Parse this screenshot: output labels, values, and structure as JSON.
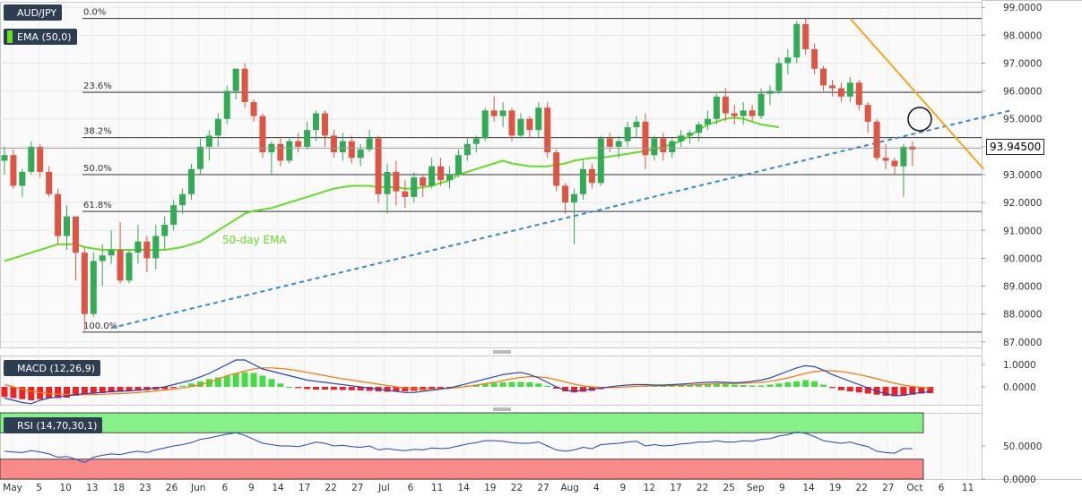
{
  "chart_data": {
    "type": "candlestick",
    "symbol": "AUD/JPY",
    "y_ticks": [
      "99.0000",
      "98.0000",
      "97.0000",
      "96.0000",
      "95.0000",
      "94.0000",
      "93.0000",
      "92.0000",
      "91.0000",
      "90.0000",
      "89.0000",
      "88.0000",
      "87.0000"
    ],
    "ylim": [
      86.8,
      99.2
    ],
    "current_price": "93.94500",
    "x_ticks": [
      "May",
      "5",
      "10",
      "13",
      "18",
      "23",
      "26",
      "Jun",
      "6",
      "9",
      "14",
      "17",
      "22",
      "27",
      "Jul",
      "6",
      "11",
      "14",
      "19",
      "22",
      "27",
      "Aug",
      "4",
      "9",
      "12",
      "17",
      "22",
      "25",
      "Sep",
      "9",
      "14",
      "19",
      "22",
      "27",
      "Oct",
      "6",
      "11"
    ],
    "ema": {
      "label": "EMA (50,0)",
      "annotation": "50-day EMA",
      "color": "#66dd22",
      "values": [
        89.9,
        90.0,
        90.1,
        90.2,
        90.3,
        90.4,
        90.5,
        90.5,
        90.5,
        90.4,
        90.35,
        90.3,
        90.3,
        90.3,
        90.3,
        90.3,
        90.3,
        90.3,
        90.3,
        90.35,
        90.4,
        90.5,
        90.6,
        90.8,
        91.0,
        91.2,
        91.4,
        91.6,
        91.7,
        91.75,
        91.8,
        91.9,
        92.0,
        92.1,
        92.2,
        92.3,
        92.4,
        92.5,
        92.55,
        92.6,
        92.6,
        92.6,
        92.55,
        92.55,
        92.55,
        92.5,
        92.5,
        92.55,
        92.6,
        92.7,
        92.8,
        93.0,
        93.1,
        93.2,
        93.3,
        93.4,
        93.5,
        93.4,
        93.35,
        93.3,
        93.3,
        93.3,
        93.35,
        93.4,
        93.5,
        93.55,
        93.6,
        93.6,
        93.65,
        93.7,
        93.75,
        93.8,
        93.85,
        93.9,
        94.0,
        94.1,
        94.2,
        94.4,
        94.6,
        94.8,
        94.9,
        95.0,
        95.05,
        95.0,
        94.9,
        94.8,
        94.75,
        94.7
      ]
    },
    "fibonacci": [
      {
        "label": "0.0%",
        "value": 98.6
      },
      {
        "label": "23.6%",
        "value": 95.95
      },
      {
        "label": "38.2%",
        "value": 94.33
      },
      {
        "label": "50.0%",
        "value": 93.0
      },
      {
        "label": "61.8%",
        "value": 91.68
      },
      {
        "label": "100.0%",
        "value": 87.35
      }
    ],
    "trendline_support": {
      "from": {
        "bar": 12,
        "value": 87.5
      },
      "to": {
        "bar": 113,
        "value": 95.3
      }
    },
    "trendline_resistance": {
      "from": {
        "bar": 95,
        "value": 98.6
      },
      "to": {
        "bar": 110,
        "value": 93.2
      }
    },
    "candles": [
      [
        93.5,
        94.0,
        93.0,
        93.7
      ],
      [
        93.7,
        93.9,
        92.5,
        92.6
      ],
      [
        92.6,
        93.2,
        92.2,
        93.1
      ],
      [
        93.1,
        94.2,
        93.0,
        94.0
      ],
      [
        94.0,
        94.1,
        92.9,
        93.1
      ],
      [
        93.1,
        93.3,
        92.2,
        92.3
      ],
      [
        92.3,
        92.5,
        90.5,
        90.8
      ],
      [
        90.8,
        91.9,
        90.3,
        91.5
      ],
      [
        91.5,
        91.5,
        89.2,
        90.2
      ],
      [
        90.2,
        90.4,
        87.4,
        88.0
      ],
      [
        88.0,
        90.2,
        87.9,
        89.9
      ],
      [
        89.9,
        90.5,
        89.0,
        90.1
      ],
      [
        90.1,
        91.0,
        89.8,
        90.3
      ],
      [
        90.3,
        91.3,
        89.1,
        89.2
      ],
      [
        89.2,
        90.3,
        89.1,
        90.2
      ],
      [
        90.2,
        91.2,
        89.8,
        90.6
      ],
      [
        90.6,
        90.8,
        89.5,
        90.0
      ],
      [
        90.0,
        91.2,
        89.6,
        90.8
      ],
      [
        90.8,
        91.5,
        90.3,
        91.2
      ],
      [
        91.2,
        92.1,
        91.0,
        91.9
      ],
      [
        91.9,
        92.5,
        91.6,
        92.3
      ],
      [
        92.3,
        93.4,
        92.1,
        93.2
      ],
      [
        93.2,
        94.3,
        93.0,
        94.0
      ],
      [
        94.0,
        94.6,
        93.5,
        94.4
      ],
      [
        94.4,
        95.2,
        94.0,
        95.0
      ],
      [
        95.0,
        96.2,
        94.8,
        96.0
      ],
      [
        96.0,
        96.8,
        95.7,
        96.8
      ],
      [
        96.8,
        97.0,
        95.4,
        95.6
      ],
      [
        95.6,
        95.7,
        94.9,
        95.1
      ],
      [
        95.1,
        95.2,
        93.6,
        93.8
      ],
      [
        93.8,
        94.2,
        93.0,
        94.1
      ],
      [
        94.1,
        94.3,
        93.3,
        93.5
      ],
      [
        93.5,
        94.3,
        93.4,
        94.2
      ],
      [
        94.2,
        94.5,
        93.8,
        94.0
      ],
      [
        94.0,
        94.9,
        93.9,
        94.6
      ],
      [
        94.6,
        95.3,
        94.2,
        95.2
      ],
      [
        95.2,
        95.3,
        94.0,
        94.4
      ],
      [
        94.4,
        94.6,
        93.6,
        93.8
      ],
      [
        93.8,
        94.5,
        93.5,
        94.2
      ],
      [
        94.2,
        94.4,
        93.4,
        93.6
      ],
      [
        93.6,
        94.1,
        93.3,
        93.9
      ],
      [
        93.9,
        94.6,
        93.8,
        94.3
      ],
      [
        94.3,
        94.4,
        92.0,
        92.3
      ],
      [
        92.3,
        93.4,
        91.6,
        93.1
      ],
      [
        93.1,
        93.5,
        91.9,
        92.4
      ],
      [
        92.4,
        92.8,
        91.8,
        92.2
      ],
      [
        92.2,
        93.1,
        92.0,
        92.9
      ],
      [
        92.9,
        93.0,
        92.2,
        92.6
      ],
      [
        92.6,
        93.6,
        92.5,
        93.3
      ],
      [
        93.3,
        93.6,
        92.6,
        92.8
      ],
      [
        92.8,
        93.3,
        92.5,
        93.0
      ],
      [
        93.0,
        93.9,
        92.9,
        93.7
      ],
      [
        93.7,
        94.3,
        93.5,
        94.1
      ],
      [
        94.1,
        94.4,
        93.8,
        94.3
      ],
      [
        94.3,
        95.4,
        94.2,
        95.3
      ],
      [
        95.3,
        95.8,
        94.9,
        95.1
      ],
      [
        95.1,
        95.6,
        94.7,
        95.3
      ],
      [
        95.3,
        95.4,
        94.2,
        94.4
      ],
      [
        94.4,
        95.2,
        94.3,
        95.0
      ],
      [
        95.0,
        95.1,
        94.3,
        94.6
      ],
      [
        94.6,
        95.6,
        94.3,
        95.4
      ],
      [
        95.4,
        95.6,
        93.6,
        93.8
      ],
      [
        93.8,
        93.9,
        92.4,
        92.6
      ],
      [
        92.6,
        92.7,
        91.6,
        92.0
      ],
      [
        92.0,
        92.5,
        90.5,
        92.3
      ],
      [
        92.3,
        93.5,
        92.1,
        93.2
      ],
      [
        93.2,
        93.4,
        92.5,
        92.7
      ],
      [
        92.7,
        94.4,
        92.6,
        94.3
      ],
      [
        94.3,
        94.5,
        93.8,
        94.0
      ],
      [
        94.0,
        94.4,
        93.6,
        94.2
      ],
      [
        94.2,
        94.9,
        94.0,
        94.7
      ],
      [
        94.7,
        95.1,
        94.3,
        94.9
      ],
      [
        94.9,
        95.2,
        93.2,
        93.7
      ],
      [
        93.7,
        94.4,
        93.5,
        94.3
      ],
      [
        94.3,
        94.5,
        93.5,
        93.8
      ],
      [
        93.8,
        94.3,
        93.6,
        94.2
      ],
      [
        94.2,
        94.6,
        94.0,
        94.4
      ],
      [
        94.4,
        94.6,
        94.1,
        94.5
      ],
      [
        94.5,
        94.9,
        94.2,
        94.8
      ],
      [
        94.8,
        95.3,
        94.6,
        95.0
      ],
      [
        95.0,
        95.9,
        94.8,
        95.8
      ],
      [
        95.8,
        96.1,
        94.9,
        95.2
      ],
      [
        95.2,
        95.5,
        94.8,
        95.1
      ],
      [
        95.1,
        95.6,
        94.8,
        95.3
      ],
      [
        95.3,
        95.5,
        94.9,
        95.1
      ],
      [
        95.1,
        96.1,
        95.0,
        95.9
      ],
      [
        95.9,
        96.2,
        95.5,
        96.0
      ],
      [
        96.0,
        97.2,
        95.9,
        97.0
      ],
      [
        97.0,
        97.5,
        96.6,
        97.2
      ],
      [
        97.2,
        98.5,
        97.0,
        98.4
      ],
      [
        98.4,
        98.6,
        97.3,
        97.5
      ],
      [
        97.5,
        97.7,
        96.6,
        96.8
      ],
      [
        96.8,
        96.9,
        96.0,
        96.2
      ],
      [
        96.2,
        96.4,
        95.8,
        96.1
      ],
      [
        96.1,
        96.3,
        95.6,
        95.8
      ],
      [
        95.8,
        96.5,
        95.6,
        96.3
      ],
      [
        96.3,
        96.4,
        95.3,
        95.5
      ],
      [
        95.5,
        95.6,
        94.5,
        94.9
      ],
      [
        94.9,
        95.0,
        93.5,
        93.6
      ],
      [
        93.6,
        94.1,
        93.2,
        93.5
      ],
      [
        93.5,
        93.6,
        93.0,
        93.3
      ],
      [
        93.3,
        94.1,
        92.2,
        94.0
      ],
      [
        94.0,
        94.2,
        93.3,
        93.9
      ]
    ],
    "macd": {
      "label": "MACD (12,26,9)",
      "y_ticks": [
        "1.0000",
        "0.0000"
      ],
      "ylim": [
        -0.8,
        1.4
      ],
      "hist": [
        -0.45,
        -0.5,
        -0.55,
        -0.6,
        -0.55,
        -0.5,
        -0.5,
        -0.48,
        -0.4,
        -0.35,
        -0.3,
        -0.28,
        -0.25,
        -0.22,
        -0.2,
        -0.18,
        -0.15,
        -0.12,
        -0.1,
        -0.05,
        0.05,
        0.15,
        0.25,
        0.35,
        0.42,
        0.5,
        0.6,
        0.65,
        0.62,
        0.5,
        0.35,
        0.15,
        0.0,
        -0.05,
        -0.1,
        -0.12,
        -0.12,
        -0.13,
        -0.14,
        -0.15,
        -0.16,
        -0.18,
        -0.2,
        -0.22,
        -0.22,
        -0.2,
        -0.18,
        -0.15,
        -0.12,
        -0.08,
        -0.04,
        0.02,
        0.06,
        0.1,
        0.15,
        0.18,
        0.2,
        0.22,
        0.22,
        0.2,
        0.15,
        0.05,
        -0.08,
        -0.2,
        -0.25,
        -0.22,
        -0.18,
        -0.1,
        -0.05,
        -0.02,
        0.02,
        0.04,
        0.05,
        0.05,
        0.04,
        0.05,
        0.06,
        0.07,
        0.08,
        0.1,
        0.12,
        0.12,
        0.1,
        0.08,
        0.06,
        0.06,
        0.1,
        0.15,
        0.2,
        0.25,
        0.3,
        0.25,
        0.1,
        -0.05,
        -0.15,
        -0.2,
        -0.25,
        -0.3,
        -0.35,
        -0.4,
        -0.42,
        -0.4,
        -0.35,
        -0.3,
        -0.28
      ],
      "macd": [
        -0.5,
        -0.6,
        -0.7,
        -0.75,
        -0.6,
        -0.5,
        -0.45,
        -0.4,
        -0.35,
        -0.3,
        -0.28,
        -0.25,
        -0.2,
        -0.2,
        -0.18,
        -0.15,
        -0.1,
        -0.05,
        0.0,
        0.1,
        0.2,
        0.3,
        0.45,
        0.6,
        0.8,
        1.0,
        1.2,
        1.2,
        1.0,
        0.8,
        0.7,
        0.6,
        0.5,
        0.4,
        0.3,
        0.25,
        0.2,
        0.15,
        0.1,
        0.05,
        0.0,
        -0.05,
        -0.1,
        -0.15,
        -0.2,
        -0.25,
        -0.25,
        -0.2,
        -0.15,
        -0.1,
        -0.05,
        0.05,
        0.15,
        0.25,
        0.35,
        0.45,
        0.55,
        0.6,
        0.65,
        0.55,
        0.4,
        0.2,
        0.0,
        -0.15,
        -0.2,
        -0.15,
        -0.1,
        -0.05,
        0.0,
        0.05,
        0.08,
        0.1,
        0.1,
        0.08,
        0.08,
        0.1,
        0.12,
        0.15,
        0.18,
        0.2,
        0.22,
        0.2,
        0.18,
        0.2,
        0.25,
        0.3,
        0.4,
        0.55,
        0.7,
        0.85,
        0.95,
        0.9,
        0.75,
        0.55,
        0.4,
        0.25,
        0.1,
        -0.05,
        -0.2,
        -0.3,
        -0.4,
        -0.38,
        -0.3,
        -0.25,
        -0.22
      ],
      "signal": [
        0.1,
        0.0,
        -0.1,
        -0.2,
        -0.25,
        -0.3,
        -0.32,
        -0.34,
        -0.35,
        -0.35,
        -0.34,
        -0.33,
        -0.31,
        -0.3,
        -0.28,
        -0.25,
        -0.22,
        -0.18,
        -0.14,
        -0.1,
        -0.05,
        0.02,
        0.1,
        0.2,
        0.35,
        0.5,
        0.6,
        0.7,
        0.8,
        0.85,
        0.85,
        0.82,
        0.78,
        0.72,
        0.65,
        0.58,
        0.5,
        0.43,
        0.36,
        0.3,
        0.24,
        0.18,
        0.12,
        0.06,
        0.0,
        -0.05,
        -0.08,
        -0.1,
        -0.1,
        -0.08,
        -0.06,
        -0.03,
        0.02,
        0.08,
        0.14,
        0.2,
        0.28,
        0.36,
        0.42,
        0.46,
        0.45,
        0.4,
        0.32,
        0.22,
        0.12,
        0.05,
        0.0,
        -0.02,
        -0.03,
        -0.02,
        0.0,
        0.02,
        0.04,
        0.05,
        0.05,
        0.06,
        0.07,
        0.08,
        0.1,
        0.12,
        0.14,
        0.15,
        0.15,
        0.16,
        0.18,
        0.2,
        0.25,
        0.32,
        0.4,
        0.5,
        0.6,
        0.68,
        0.72,
        0.72,
        0.68,
        0.62,
        0.55,
        0.46,
        0.36,
        0.26,
        0.16,
        0.08,
        0.02,
        -0.02,
        -0.06
      ]
    },
    "rsi": {
      "label": "RSI (14,70,30,1)",
      "y_ticks": [
        "50.0000",
        "0.0000"
      ],
      "ylim": [
        0,
        100
      ],
      "overbought": 70,
      "oversold": 30,
      "values": [
        42,
        41,
        40,
        43,
        41,
        38,
        33,
        34,
        30,
        25,
        33,
        36,
        38,
        37,
        40,
        42,
        40,
        44,
        47,
        50,
        52,
        55,
        60,
        62,
        65,
        68,
        70,
        66,
        60,
        54,
        52,
        50,
        50,
        49,
        52,
        56,
        54,
        50,
        51,
        49,
        48,
        50,
        44,
        46,
        44,
        43,
        45,
        44,
        47,
        46,
        47,
        50,
        53,
        55,
        58,
        58,
        57,
        55,
        54,
        54,
        56,
        50,
        44,
        42,
        44,
        48,
        46,
        52,
        53,
        54,
        56,
        57,
        50,
        52,
        50,
        51,
        53,
        54,
        56,
        56,
        58,
        56,
        56,
        58,
        57,
        60,
        61,
        65,
        67,
        71,
        69,
        64,
        58,
        56,
        54,
        56,
        52,
        49,
        42,
        40,
        39,
        46,
        46
      ]
    }
  },
  "badges": {
    "symbol": "AUD/JPY",
    "ema": "EMA (50,0)",
    "macd": "MACD (12,26,9)",
    "rsi": "RSI (14,70,30,1)"
  },
  "colors": {
    "bull": "#33aa55",
    "bear": "#dd5544",
    "fib": "#333333",
    "support": "#3388dd",
    "resistance": "#f5a623",
    "macd": "#2244cc",
    "signal": "#ff7700",
    "rsi": "#2244cc"
  }
}
